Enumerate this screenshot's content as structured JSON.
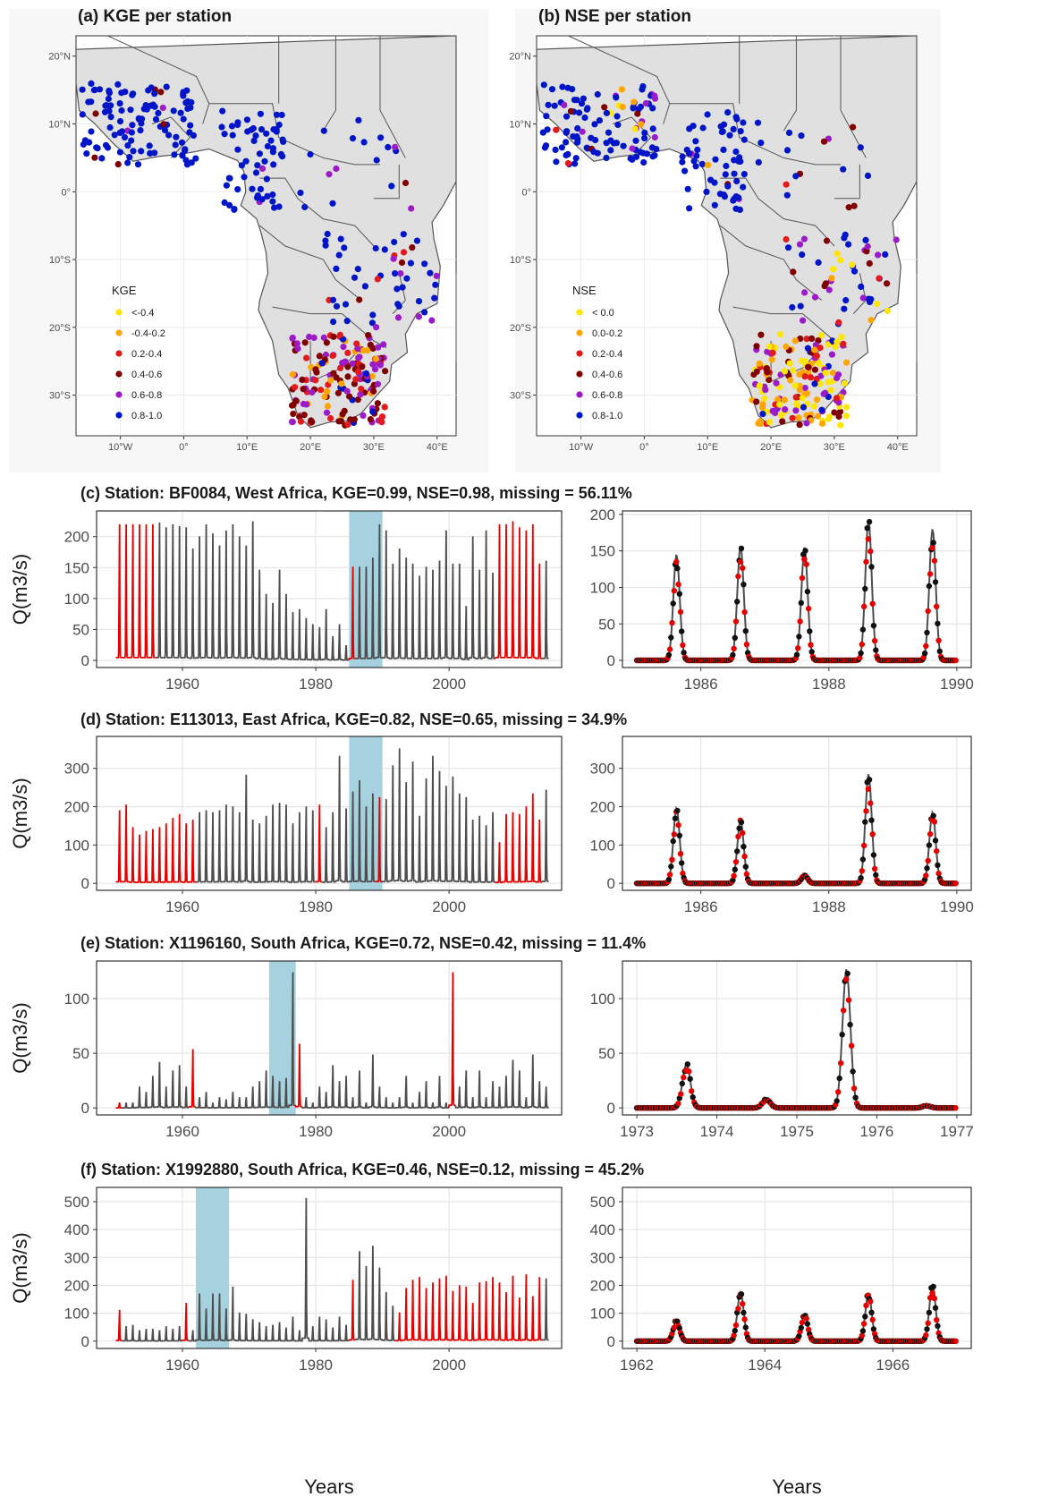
{
  "map_panels": [
    {
      "id": "a",
      "title": "(a) KGE per station",
      "legend_title": "KGE",
      "legend": [
        {
          "label": "<-0.4",
          "color": "#FFE600"
        },
        {
          "label": "-0.4-0.2",
          "color": "#FFA500"
        },
        {
          "label": "0.2-0.4",
          "color": "#E31A1C"
        },
        {
          "label": "0.4-0.6",
          "color": "#800000"
        },
        {
          "label": "0.6-0.8",
          "color": "#9B1BC9"
        },
        {
          "label": "0.8-1.0",
          "color": "#0015C8"
        }
      ]
    },
    {
      "id": "b",
      "title": "(b) NSE per station",
      "legend_title": "NSE",
      "legend": [
        {
          "label": "< 0.0",
          "color": "#FFE600"
        },
        {
          "label": "0.0-0.2",
          "color": "#FFA500"
        },
        {
          "label": "0.2-0.4",
          "color": "#E31A1C"
        },
        {
          "label": "0.4-0.6",
          "color": "#800000"
        },
        {
          "label": "0.6-0.8",
          "color": "#9B1BC9"
        },
        {
          "label": "0.8-1.0",
          "color": "#0015C8"
        }
      ]
    }
  ],
  "map_axes": {
    "lat_ticks": [
      "20°N",
      "10°N",
      "0°",
      "10°S",
      "20°S",
      "30°S"
    ],
    "lon_ticks": [
      "10°W",
      "0°",
      "10°E",
      "20°E",
      "30°E",
      "40°E"
    ]
  },
  "colors": {
    "observed": "#E60000",
    "simulated": "#4D4D4D",
    "highlight": "#A6D2E0",
    "land": "#E0E0E0",
    "border": "#555555"
  },
  "ts_rows": [
    {
      "title": "(c) Station: BF0084, West Africa, KGE=0.99, NSE=0.98, missing = 56.11%",
      "ylabel": "Q(m3/s)",
      "left_yticks": [
        "0",
        "50",
        "100",
        "150",
        "200"
      ],
      "left_xticks": [
        "1960",
        "1980",
        "2000"
      ],
      "right_yticks": [
        "0",
        "50",
        "100",
        "150",
        "200"
      ],
      "right_xticks": [
        "1986",
        "1988",
        "1990"
      ]
    },
    {
      "title": "(d) Station: E113013, East Africa, KGE=0.82, NSE=0.65, missing = 34.9%",
      "ylabel": "Q(m3/s)",
      "left_yticks": [
        "0",
        "100",
        "200",
        "300"
      ],
      "left_xticks": [
        "1960",
        "1980",
        "2000"
      ],
      "right_yticks": [
        "0",
        "100",
        "200",
        "300"
      ],
      "right_xticks": [
        "1986",
        "1988",
        "1990"
      ]
    },
    {
      "title": "(e) Station: X1196160, South Africa, KGE=0.72, NSE=0.42, missing = 11.4%",
      "ylabel": "Q(m3/s)",
      "left_yticks": [
        "0",
        "50",
        "100"
      ],
      "left_xticks": [
        "1960",
        "1980",
        "2000"
      ],
      "right_yticks": [
        "0",
        "50",
        "100"
      ],
      "right_xticks": [
        "1973",
        "1974",
        "1975",
        "1976",
        "1977"
      ]
    },
    {
      "title": "(f) Station: X1992880, South Africa, KGE=0.46, NSE=0.12, missing = 45.2%",
      "ylabel": "Q(m3/s)",
      "left_yticks": [
        "0",
        "100",
        "200",
        "300",
        "400",
        "500"
      ],
      "left_xticks": [
        "1960",
        "1980",
        "2000"
      ],
      "right_yticks": [
        "0",
        "100",
        "200",
        "300",
        "400",
        "500"
      ],
      "right_xticks": [
        "1962",
        "1964",
        "1966"
      ]
    }
  ],
  "xlabel": "Years",
  "chart_data": [
    {
      "type": "line",
      "panel": "c-full",
      "x_range": [
        1950,
        2014
      ],
      "ylim": [
        0,
        230
      ],
      "highlight": [
        1985,
        1990
      ],
      "observed_years": [
        [
          1950,
          1956
        ],
        [
          1985.5,
          1986.5
        ],
        [
          2007,
          2014
        ]
      ],
      "annual_peaks": [
        225,
        225,
        225,
        225,
        225,
        225,
        228,
        220,
        225,
        222,
        220,
        185,
        205,
        225,
        210,
        190,
        215,
        225,
        205,
        190,
        230,
        150,
        110,
        95,
        150,
        110,
        80,
        85,
        70,
        60,
        55,
        85,
        40,
        60,
        25,
        155,
        155,
        155,
        170,
        225,
        215,
        160,
        185,
        170,
        160,
        140,
        155,
        150,
        165,
        215,
        160,
        160,
        90,
        205,
        150,
        215,
        145,
        225,
        225,
        230,
        220,
        215,
        225,
        160,
        165
      ]
    },
    {
      "type": "line",
      "panel": "c-zoom",
      "x_range": [
        1985,
        1990
      ],
      "ylim": [
        0,
        195
      ],
      "annual_peaks": [
        145,
        157,
        155,
        192,
        180
      ]
    },
    {
      "type": "line",
      "panel": "d-full",
      "x_range": [
        1950,
        2014
      ],
      "ylim": [
        0,
        365
      ],
      "highlight": [
        1985,
        1990
      ],
      "observed_years": [
        [
          1950,
          1962
        ],
        [
          1980,
          1981
        ],
        [
          1989,
          1990
        ],
        [
          2007,
          2014
        ]
      ],
      "annual_peaks": [
        195,
        210,
        150,
        130,
        140,
        145,
        150,
        160,
        175,
        185,
        160,
        170,
        190,
        195,
        190,
        195,
        210,
        205,
        190,
        290,
        170,
        160,
        180,
        210,
        215,
        210,
        160,
        190,
        205,
        195,
        210,
        150,
        190,
        340,
        200,
        245,
        275,
        205,
        240,
        230,
        225,
        315,
        360,
        270,
        325,
        180,
        280,
        340,
        300,
        260,
        285,
        240,
        230,
        170,
        180,
        155,
        190,
        110,
        185,
        190,
        185,
        205,
        240,
        170,
        250
      ]
    },
    {
      "type": "line",
      "panel": "d-zoom",
      "x_range": [
        1985,
        1990
      ],
      "ylim": [
        0,
        365
      ],
      "annual_peaks": [
        195,
        165,
        20,
        285,
        185
      ]
    },
    {
      "type": "line",
      "panel": "e-full",
      "x_range": [
        1950,
        2014
      ],
      "ylim": [
        0,
        128
      ],
      "highlight": [
        1973,
        1977
      ],
      "observed_years": [
        [
          1950,
          1951
        ],
        [
          1961,
          1962
        ],
        [
          1977,
          1978
        ],
        [
          2000,
          2001
        ]
      ],
      "annual_peaks": [
        5,
        5,
        5,
        20,
        15,
        30,
        43,
        20,
        35,
        40,
        20,
        55,
        10,
        15,
        5,
        10,
        8,
        15,
        10,
        10,
        20,
        25,
        35,
        30,
        25,
        28,
        127,
        60,
        10,
        5,
        20,
        15,
        40,
        25,
        30,
        10,
        35,
        5,
        50,
        20,
        10,
        5,
        10,
        30,
        5,
        15,
        25,
        5,
        30,
        5,
        127,
        20,
        35,
        10,
        35,
        10,
        25,
        20,
        30,
        45,
        35,
        10,
        50,
        25,
        20
      ]
    },
    {
      "type": "line",
      "panel": "e-zoom",
      "x_range": [
        1973,
        1977
      ],
      "ylim": [
        0,
        128
      ],
      "annual_peaks": [
        40,
        8,
        127,
        2
      ]
    },
    {
      "type": "line",
      "panel": "f-full",
      "x_range": [
        1950,
        2014
      ],
      "ylim": [
        0,
        525
      ],
      "highlight": [
        1962,
        1967
      ],
      "observed_years": [
        [
          1950,
          1951
        ],
        [
          1960,
          1961
        ],
        [
          1985,
          1986
        ],
        [
          1992,
          2014
        ]
      ],
      "annual_peaks": [
        115,
        55,
        60,
        40,
        45,
        45,
        40,
        55,
        45,
        55,
        140,
        40,
        175,
        120,
        175,
        175,
        120,
        200,
        105,
        100,
        80,
        70,
        55,
        60,
        70,
        50,
        90,
        40,
        525,
        55,
        90,
        80,
        50,
        90,
        60,
        225,
        330,
        275,
        350,
        270,
        180,
        130,
        105,
        195,
        225,
        235,
        195,
        215,
        230,
        240,
        185,
        205,
        200,
        140,
        215,
        220,
        235,
        215,
        180,
        240,
        160,
        245,
        165,
        235,
        230
      ]
    },
    {
      "type": "line",
      "panel": "f-zoom",
      "x_range": [
        1962,
        1967
      ],
      "ylim": [
        0,
        525
      ],
      "annual_peaks": [
        75,
        175,
        95,
        170,
        200
      ]
    }
  ]
}
